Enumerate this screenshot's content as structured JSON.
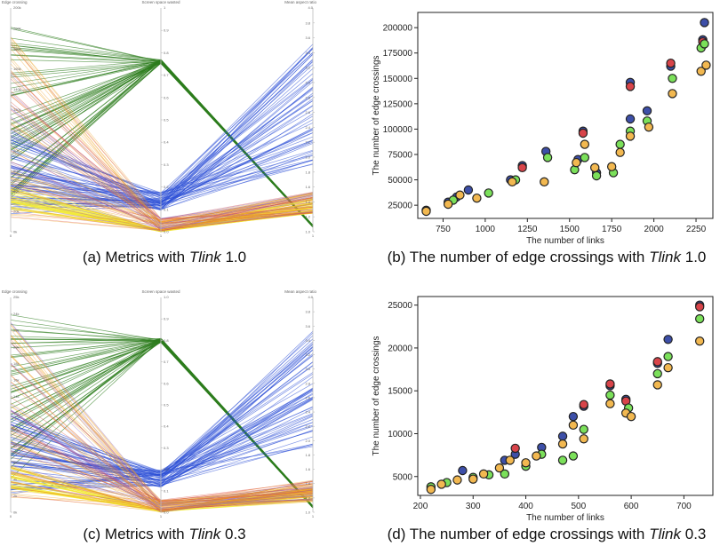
{
  "captions": {
    "a": {
      "before": "(a) Metrics with ",
      "italic": "Tlink",
      "after": " 1.0"
    },
    "b": {
      "before": "(b) The number of edge crossings with ",
      "italic": "Tlink",
      "after": " 1.0"
    },
    "c": {
      "before": "(c) Metrics with ",
      "italic": "Tlink",
      "after": " 0.3"
    },
    "d": {
      "before": "(d) The number of edge crossings with ",
      "italic": "Tlink",
      "after": " 0.3"
    }
  },
  "colors": {
    "green": "#2e7d1e",
    "blue": "#2b4fd6",
    "yellow": "#f2ea3a",
    "orange": "#f0a020",
    "red": "#e05040",
    "purple": "#8a60c0",
    "dot_blue": "#3d4fa8",
    "dot_red": "#d8444a",
    "dot_green": "#7be05a",
    "dot_orange": "#f2b850"
  },
  "chart_data": [
    {
      "id": "a",
      "type": "parallel-coordinates",
      "axes": [
        {
          "label": "Edge crossing",
          "top": "200k",
          "ticks": [
            "200k",
            "180k",
            "160k",
            "140k",
            "120k",
            "100k",
            "80k",
            "60k",
            "40k",
            "20k",
            "0k"
          ],
          "bottom_label": "0"
        },
        {
          "label": "Screen space wasted",
          "top": "1",
          "ticks": [
            "0.9",
            "0.8",
            "0.7",
            "0.6",
            "0.5",
            "0.4",
            "0.3",
            "0.2",
            "0.1",
            "0.0"
          ],
          "bottom_label": "1"
        },
        {
          "label": "Mean aspect ratio",
          "top": "4.0",
          "ticks": [
            "3.8",
            "3.6",
            "3.4",
            "3.2",
            "3.0",
            "2.8",
            "2.6",
            "2.4",
            "2.2",
            "2.0",
            "1.8",
            "1.6",
            "1.4",
            "1.2",
            "1.0"
          ],
          "bottom_label": "1"
        }
      ]
    },
    {
      "id": "b",
      "type": "scatter",
      "xlabel": "The number of links",
      "ylabel": "The number of edge crossings",
      "xlim": [
        600,
        2350
      ],
      "ylim": [
        12000,
        215000
      ],
      "xticks": [
        750,
        1000,
        1250,
        1500,
        1750,
        2000,
        2250
      ],
      "yticks": [
        25000,
        50000,
        75000,
        100000,
        125000,
        150000,
        175000,
        200000
      ],
      "series": [
        {
          "color": "dot_blue",
          "points": [
            [
              650,
              20000
            ],
            [
              780,
              28000
            ],
            [
              830,
              33000
            ],
            [
              900,
              40000
            ],
            [
              1150,
              50000
            ],
            [
              1220,
              64000
            ],
            [
              1360,
              78000
            ],
            [
              1550,
              70000
            ],
            [
              1580,
              98000
            ],
            [
              1660,
              57000
            ],
            [
              1860,
              146000
            ],
            [
              1860,
              110000
            ],
            [
              1960,
              118000
            ],
            [
              2100,
              162000
            ],
            [
              2290,
              188000
            ],
            [
              2300,
              205000
            ]
          ]
        },
        {
          "color": "dot_red",
          "points": [
            [
              1220,
              62000
            ],
            [
              1580,
              96000
            ],
            [
              1860,
              142000
            ],
            [
              2100,
              165000
            ],
            [
              2290,
              186000
            ]
          ]
        },
        {
          "color": "dot_green",
          "points": [
            [
              810,
              30000
            ],
            [
              1020,
              37000
            ],
            [
              1180,
              50000
            ],
            [
              1370,
              72000
            ],
            [
              1530,
              60000
            ],
            [
              1590,
              72000
            ],
            [
              1660,
              54000
            ],
            [
              1760,
              57000
            ],
            [
              1800,
              85000
            ],
            [
              1860,
              98000
            ],
            [
              1960,
              108000
            ],
            [
              2110,
              150000
            ],
            [
              2280,
              180000
            ],
            [
              2300,
              184000
            ]
          ]
        },
        {
          "color": "dot_orange",
          "points": [
            [
              650,
              19000
            ],
            [
              780,
              26000
            ],
            [
              850,
              35000
            ],
            [
              950,
              32000
            ],
            [
              1160,
              48000
            ],
            [
              1350,
              48000
            ],
            [
              1540,
              67000
            ],
            [
              1590,
              85000
            ],
            [
              1650,
              62000
            ],
            [
              1750,
              63000
            ],
            [
              1800,
              77000
            ],
            [
              1860,
              93000
            ],
            [
              1970,
              102000
            ],
            [
              2110,
              135000
            ],
            [
              2280,
              157000
            ],
            [
              2310,
              163000
            ]
          ]
        }
      ]
    },
    {
      "id": "c",
      "type": "parallel-coordinates",
      "axes": [
        {
          "label": "Edge crossing",
          "top": "25k",
          "ticks": [
            "24k",
            "22k",
            "20k",
            "18k",
            "16k",
            "14k",
            "12k",
            "10k",
            "8k",
            "6k",
            "4k",
            "2k",
            "0k"
          ],
          "bottom_label": "0"
        },
        {
          "label": "Screen space wasted",
          "top": "1.0",
          "ticks": [
            "0.9",
            "0.8",
            "0.7",
            "0.6",
            "0.5",
            "0.4",
            "0.3",
            "0.2",
            "0.1",
            "0.0"
          ],
          "bottom_label": "1"
        },
        {
          "label": "Mean aspect ratio",
          "top": "4.0",
          "ticks": [
            "3.8",
            "3.6",
            "3.4",
            "3.2",
            "3.0",
            "2.8",
            "2.6",
            "2.4",
            "2.2",
            "2.0",
            "1.8",
            "1.6",
            "1.4",
            "1.2",
            "1.0"
          ],
          "bottom_label": "1"
        }
      ]
    },
    {
      "id": "d",
      "type": "scatter",
      "xlabel": "The number of links",
      "ylabel": "The number of edge crossings",
      "xlim": [
        195,
        755
      ],
      "ylim": [
        2800,
        26000
      ],
      "xticks": [
        200,
        300,
        400,
        500,
        600,
        700
      ],
      "yticks": [
        5000,
        10000,
        15000,
        20000,
        25000
      ],
      "series": [
        {
          "color": "dot_blue",
          "points": [
            [
              280,
              5700
            ],
            [
              360,
              6900
            ],
            [
              380,
              7600
            ],
            [
              430,
              8400
            ],
            [
              470,
              9700
            ],
            [
              490,
              12000
            ],
            [
              510,
              13200
            ],
            [
              560,
              15600
            ],
            [
              590,
              14000
            ],
            [
              650,
              18200
            ],
            [
              670,
              21000
            ],
            [
              730,
              25000
            ]
          ]
        },
        {
          "color": "dot_red",
          "points": [
            [
              380,
              8300
            ],
            [
              510,
              13400
            ],
            [
              560,
              15800
            ],
            [
              590,
              13800
            ],
            [
              650,
              18400
            ],
            [
              730,
              24800
            ]
          ]
        },
        {
          "color": "dot_green",
          "points": [
            [
              220,
              3800
            ],
            [
              250,
              4300
            ],
            [
              300,
              4900
            ],
            [
              330,
              5200
            ],
            [
              360,
              5300
            ],
            [
              400,
              6200
            ],
            [
              430,
              7600
            ],
            [
              470,
              6900
            ],
            [
              490,
              7400
            ],
            [
              510,
              10500
            ],
            [
              560,
              14500
            ],
            [
              595,
              13000
            ],
            [
              650,
              17000
            ],
            [
              670,
              19000
            ],
            [
              730,
              23400
            ]
          ]
        },
        {
          "color": "dot_orange",
          "points": [
            [
              220,
              3500
            ],
            [
              240,
              4100
            ],
            [
              270,
              4600
            ],
            [
              300,
              4700
            ],
            [
              320,
              5300
            ],
            [
              350,
              6000
            ],
            [
              370,
              6900
            ],
            [
              400,
              6600
            ],
            [
              420,
              7400
            ],
            [
              470,
              8800
            ],
            [
              490,
              11000
            ],
            [
              510,
              9400
            ],
            [
              560,
              13500
            ],
            [
              590,
              12400
            ],
            [
              600,
              12000
            ],
            [
              650,
              15700
            ],
            [
              670,
              17700
            ],
            [
              730,
              20800
            ]
          ]
        }
      ]
    }
  ]
}
